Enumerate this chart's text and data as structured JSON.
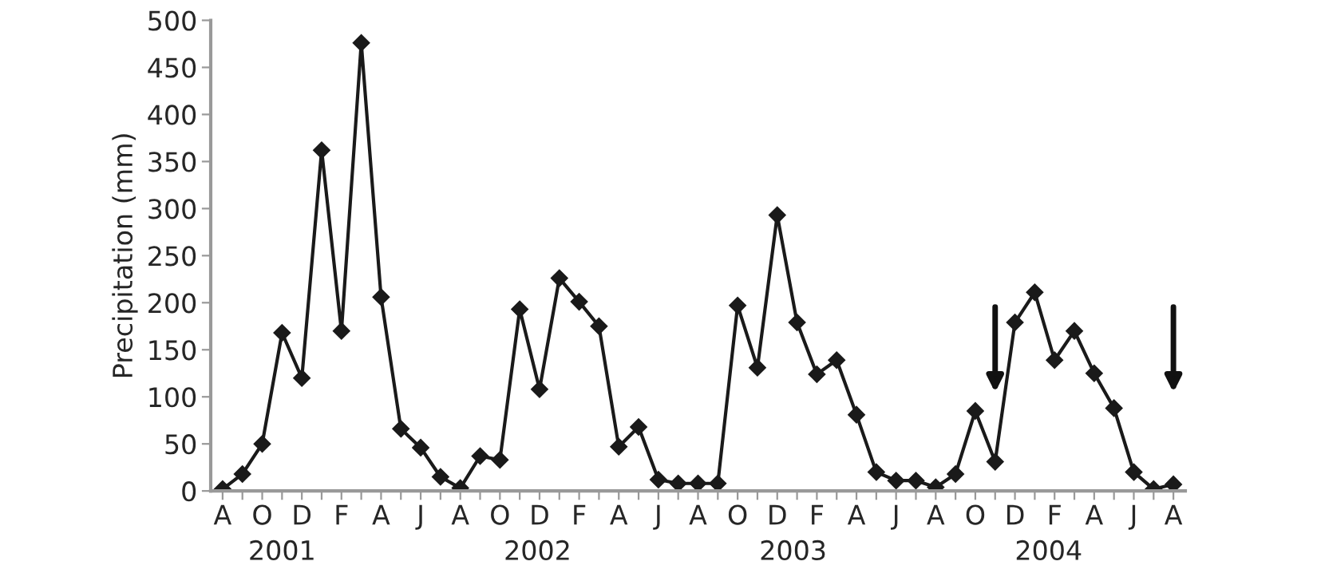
{
  "chart_data": {
    "type": "line",
    "ylabel": "Precipitation (mm)",
    "categories": [
      "A",
      null,
      "O",
      null,
      "D",
      null,
      "F",
      null,
      "A",
      null,
      "J",
      null,
      "A",
      null,
      "O",
      null,
      "D",
      null,
      "F",
      null,
      "A",
      null,
      "J",
      null,
      "A",
      null,
      "O",
      null,
      "D",
      null,
      "F",
      null,
      "A",
      null,
      "J",
      null,
      "A",
      null,
      "O",
      null,
      "D",
      null,
      "F",
      null,
      "A",
      null,
      "J",
      null,
      "A"
    ],
    "series": [
      {
        "color": "#1a1a1a",
        "values": [
          2,
          18,
          50,
          168,
          120,
          362,
          170,
          476,
          206,
          66,
          46,
          15,
          3,
          37,
          33,
          193,
          108,
          226,
          201,
          175,
          47,
          68,
          12,
          8,
          8,
          8,
          197,
          131,
          293,
          179,
          124,
          139,
          81,
          20,
          11,
          11,
          4,
          18,
          85,
          31,
          179,
          211,
          139,
          170,
          125,
          88,
          20,
          2,
          7
        ]
      }
    ],
    "ylim": [
      0,
      500
    ],
    "yticks": [
      0,
      50,
      100,
      150,
      200,
      250,
      300,
      350,
      400,
      450,
      500
    ],
    "annotations": [
      "2001",
      "2002",
      "2003",
      "2004"
    ],
    "marker": "diamond",
    "line_style": "solid",
    "grid": false,
    "legend": false
  }
}
